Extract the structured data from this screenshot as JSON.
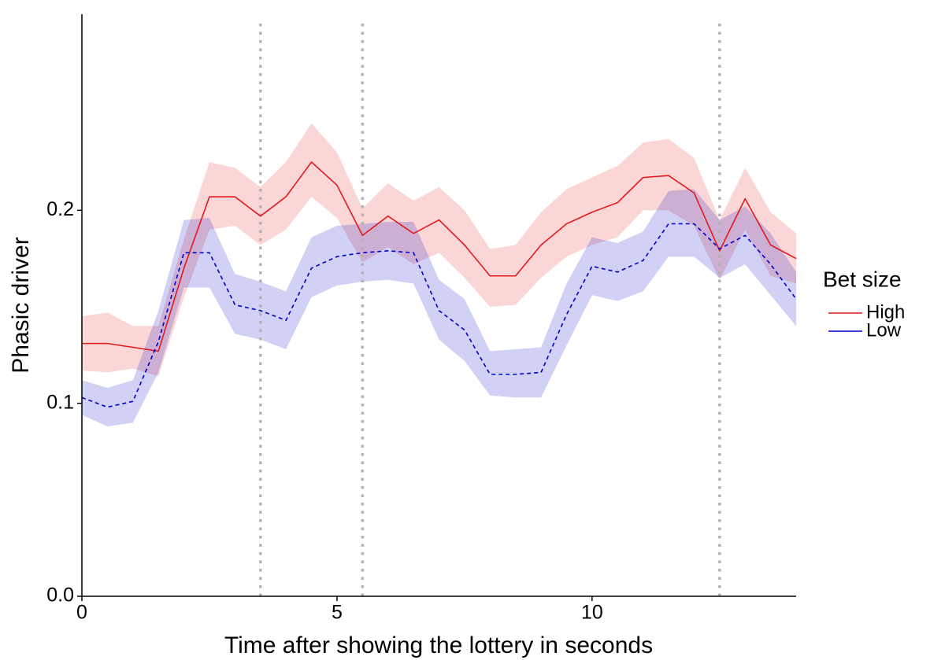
{
  "chart_data": {
    "type": "line",
    "xlabel": "Time after showing the lottery in seconds",
    "ylabel": "Phasic driver",
    "legend_title": "Bet size",
    "legend": "right",
    "xlim": [
      0,
      14
    ],
    "xticks": [
      0,
      5,
      10
    ],
    "ylim": [
      0,
      0.3
    ],
    "yticks": [
      {
        "value": 0,
        "label": "0.0"
      },
      0.1,
      0.2
    ],
    "vlines": [
      3.5,
      5.5,
      12.5
    ],
    "x": [
      0,
      0.5,
      1,
      1.5,
      2,
      2.5,
      3,
      3.5,
      4,
      4.5,
      5,
      5.5,
      6,
      6.5,
      7,
      7.5,
      8,
      8.5,
      9,
      9.5,
      10,
      10.5,
      11,
      11.5,
      12,
      12.5,
      13,
      13.5,
      14
    ],
    "series": [
      {
        "name": "High",
        "color": "#e31a1c",
        "linestyle": "solid",
        "values": [
          0.131,
          0.131,
          0.129,
          0.127,
          0.17,
          0.207,
          0.207,
          0.197,
          0.207,
          0.225,
          0.213,
          0.187,
          0.197,
          0.188,
          0.195,
          0.182,
          0.166,
          0.166,
          0.182,
          0.193,
          0.199,
          0.204,
          0.217,
          0.218,
          0.209,
          0.179,
          0.206,
          0.182,
          0.175
        ],
        "upper": [
          0.145,
          0.147,
          0.14,
          0.14,
          0.185,
          0.225,
          0.222,
          0.212,
          0.225,
          0.245,
          0.23,
          0.201,
          0.214,
          0.205,
          0.212,
          0.2,
          0.18,
          0.182,
          0.199,
          0.211,
          0.217,
          0.223,
          0.235,
          0.237,
          0.227,
          0.195,
          0.222,
          0.199,
          0.188
        ],
        "lower": [
          0.117,
          0.116,
          0.118,
          0.114,
          0.155,
          0.19,
          0.192,
          0.182,
          0.19,
          0.207,
          0.196,
          0.173,
          0.181,
          0.172,
          0.178,
          0.165,
          0.15,
          0.151,
          0.165,
          0.176,
          0.182,
          0.186,
          0.2,
          0.2,
          0.192,
          0.164,
          0.19,
          0.166,
          0.162
        ]
      },
      {
        "name": "Low",
        "color": "#0000cc",
        "linestyle": "dashed",
        "values": [
          0.103,
          0.098,
          0.101,
          0.132,
          0.178,
          0.178,
          0.151,
          0.148,
          0.143,
          0.17,
          0.176,
          0.178,
          0.179,
          0.178,
          0.148,
          0.138,
          0.115,
          0.115,
          0.116,
          0.146,
          0.171,
          0.168,
          0.174,
          0.193,
          0.193,
          0.18,
          0.187,
          0.172,
          0.154
        ],
        "upper": [
          0.112,
          0.108,
          0.112,
          0.148,
          0.195,
          0.196,
          0.167,
          0.163,
          0.158,
          0.186,
          0.192,
          0.193,
          0.194,
          0.194,
          0.164,
          0.154,
          0.127,
          0.128,
          0.129,
          0.162,
          0.186,
          0.183,
          0.189,
          0.21,
          0.211,
          0.195,
          0.202,
          0.188,
          0.168
        ],
        "lower": [
          0.094,
          0.088,
          0.09,
          0.116,
          0.16,
          0.16,
          0.136,
          0.133,
          0.128,
          0.155,
          0.161,
          0.163,
          0.164,
          0.162,
          0.133,
          0.122,
          0.104,
          0.103,
          0.103,
          0.13,
          0.156,
          0.153,
          0.158,
          0.176,
          0.176,
          0.165,
          0.172,
          0.156,
          0.14
        ]
      }
    ]
  }
}
